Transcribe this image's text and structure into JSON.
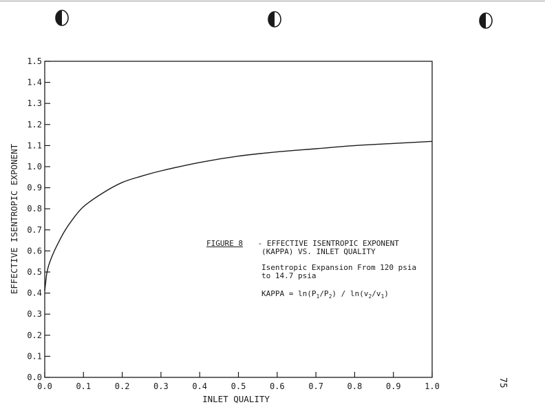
{
  "page": {
    "page_number": "75"
  },
  "annotation": {
    "figure_label": "FIGURE 8",
    "title_line1": " - EFFECTIVE ISENTROPIC EXPONENT",
    "title_line2": "(KAPPA) VS. INLET QUALITY",
    "desc_line1": "Isentropic Expansion From 120 psia",
    "desc_line2": "to 14.7 psia",
    "formula": {
      "prefix": "KAPPA = ln(P",
      "sub1": "1",
      "mid1": "/P",
      "sub2": "2",
      "mid2": ") / ln(v",
      "sub3": "2",
      "mid3": "/v",
      "sub4": "1",
      "suffix": ")"
    }
  },
  "chart_data": {
    "type": "line",
    "title": "",
    "xlabel": "INLET QUALITY",
    "ylabel": "EFFECTIVE ISENTROPIC EXPONENT",
    "xlim": [
      0.0,
      1.0
    ],
    "ylim": [
      0.0,
      1.5
    ],
    "x_ticks": [
      "0.0",
      "0.1",
      "0.2",
      "0.3",
      "0.4",
      "0.5",
      "0.6",
      "0.7",
      "0.8",
      "0.9",
      "1.0"
    ],
    "y_ticks": [
      "0.0",
      "0.1",
      "0.2",
      "0.3",
      "0.4",
      "0.5",
      "0.6",
      "0.7",
      "0.8",
      "0.9",
      "1.0",
      "1.1",
      "1.2",
      "1.3",
      "1.4",
      "1.5"
    ],
    "grid": false,
    "series": [
      {
        "color": "#1a1a1a",
        "x": [
          0.0,
          0.005,
          0.01,
          0.02,
          0.03,
          0.05,
          0.07,
          0.1,
          0.15,
          0.2,
          0.25,
          0.3,
          0.4,
          0.5,
          0.6,
          0.7,
          0.8,
          0.9,
          1.0
        ],
        "y": [
          0.41,
          0.49,
          0.53,
          0.58,
          0.62,
          0.69,
          0.745,
          0.81,
          0.875,
          0.925,
          0.955,
          0.98,
          1.02,
          1.05,
          1.07,
          1.085,
          1.1,
          1.11,
          1.12
        ]
      }
    ]
  }
}
